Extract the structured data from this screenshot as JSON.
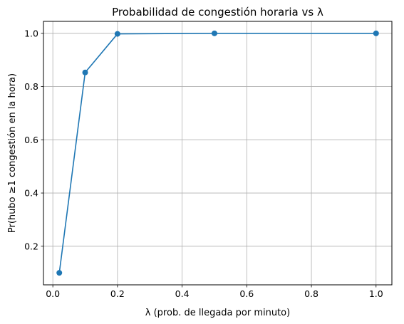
{
  "chart_data": {
    "type": "line",
    "title": "Probabilidad de congestión horaria vs λ",
    "xlabel": "λ (prob. de llegada por minuto)",
    "ylabel": "Pr(hubo ≥1 congestión en la hora)",
    "xlim": [
      -0.029,
      1.049
    ],
    "ylim": [
      0.055,
      1.045
    ],
    "x_ticks": [
      0.0,
      0.2,
      0.4,
      0.6,
      0.8,
      1.0
    ],
    "x_tick_labels": [
      "0.0",
      "0.2",
      "0.4",
      "0.6",
      "0.8",
      "1.0"
    ],
    "y_ticks": [
      0.2,
      0.4,
      0.6,
      0.8,
      1.0
    ],
    "y_tick_labels": [
      "0.2",
      "0.4",
      "0.6",
      "0.8",
      "1.0"
    ],
    "grid": true,
    "series": [
      {
        "x": [
          0.02,
          0.1,
          0.2,
          0.5,
          1.0
        ],
        "y": [
          0.1,
          0.853,
          0.998,
          1.0,
          1.0
        ],
        "color": "#1f77b4",
        "marker": "circle"
      }
    ]
  }
}
